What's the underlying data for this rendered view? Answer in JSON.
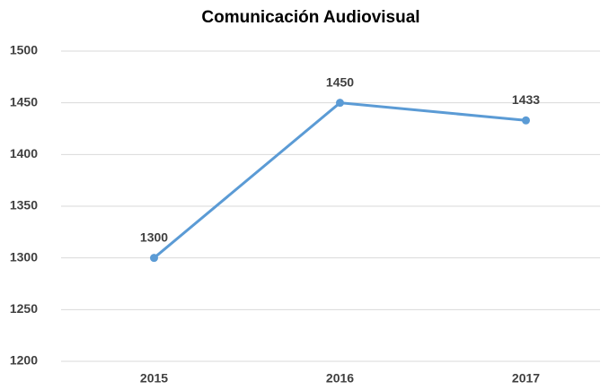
{
  "chart_data": {
    "type": "line",
    "title": "Comunicación Audiovisual",
    "categories": [
      "2015",
      "2016",
      "2017"
    ],
    "values": [
      1300,
      1450,
      1433
    ],
    "color": "#5b9bd5",
    "ylim": [
      1200,
      1500
    ],
    "yticks": [
      1200,
      1250,
      1300,
      1350,
      1400,
      1450,
      1500
    ],
    "grid": true
  }
}
